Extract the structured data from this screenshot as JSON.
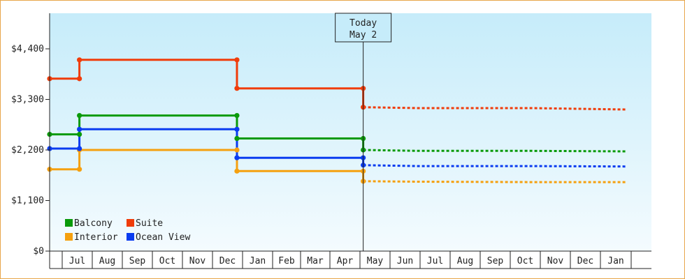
{
  "chart_data": {
    "type": "line",
    "y_tick_labels": [
      "$0",
      "$1,100",
      "$2,200",
      "$3,300",
      "$4,400"
    ],
    "y_tick_values": [
      0,
      1100,
      2200,
      3300,
      4400
    ],
    "ylim": [
      0,
      4400
    ],
    "x_tick_labels": [
      "Jul",
      "Aug",
      "Sep",
      "Oct",
      "Nov",
      "Dec",
      "Jan",
      "Feb",
      "Mar",
      "Apr",
      "May",
      "Jun",
      "Jul",
      "Aug",
      "Sep",
      "Oct",
      "Nov",
      "Dec",
      "Jan"
    ],
    "today_label": [
      "Today",
      "May 2"
    ],
    "grid": false,
    "legend_position": "bottom-left",
    "series": [
      {
        "name": "Balcony",
        "color": "#0a9a0a",
        "history": [
          [
            0,
            2540
          ],
          [
            1.05,
            2540
          ],
          [
            1.05,
            2950
          ],
          [
            6.6,
            2950
          ],
          [
            6.6,
            2450
          ],
          [
            11.05,
            2450
          ]
        ],
        "forecast": [
          [
            11.05,
            2200
          ],
          [
            13.0,
            2180
          ],
          [
            17.0,
            2180
          ],
          [
            20.3,
            2170
          ]
        ]
      },
      {
        "name": "Suite",
        "color": "#f03c0a",
        "history": [
          [
            0,
            3750
          ],
          [
            1.05,
            3750
          ],
          [
            1.05,
            4160
          ],
          [
            6.6,
            4160
          ],
          [
            6.6,
            3540
          ],
          [
            11.05,
            3540
          ]
        ],
        "forecast": [
          [
            11.05,
            3130
          ],
          [
            13.0,
            3110
          ],
          [
            17.0,
            3110
          ],
          [
            20.3,
            3080
          ]
        ]
      },
      {
        "name": "Interior",
        "color": "#f5a00f",
        "history": [
          [
            0,
            1780
          ],
          [
            1.05,
            1780
          ],
          [
            1.05,
            2200
          ],
          [
            6.6,
            2200
          ],
          [
            6.6,
            1740
          ],
          [
            11.05,
            1740
          ]
        ],
        "forecast": [
          [
            11.05,
            1520
          ],
          [
            13.0,
            1510
          ],
          [
            17.0,
            1500
          ],
          [
            20.3,
            1500
          ]
        ]
      },
      {
        "name": "Ocean View",
        "color": "#0a3cf0",
        "history": [
          [
            0,
            2230
          ],
          [
            1.05,
            2230
          ],
          [
            1.05,
            2650
          ],
          [
            6.6,
            2650
          ],
          [
            6.6,
            2030
          ],
          [
            11.05,
            2030
          ]
        ],
        "forecast": [
          [
            11.05,
            1870
          ],
          [
            13.0,
            1850
          ],
          [
            17.0,
            1850
          ],
          [
            20.3,
            1840
          ]
        ]
      }
    ],
    "markers": [
      {
        "series": 0,
        "points": [
          [
            0,
            2540
          ],
          [
            1.05,
            2540
          ],
          [
            1.05,
            2950
          ],
          [
            6.6,
            2950
          ],
          [
            6.6,
            2450
          ],
          [
            11.05,
            2450
          ],
          [
            11.05,
            2200
          ]
        ]
      },
      {
        "series": 1,
        "points": [
          [
            0,
            3750
          ],
          [
            1.05,
            3750
          ],
          [
            1.05,
            4160
          ],
          [
            6.6,
            4160
          ],
          [
            6.6,
            3540
          ],
          [
            11.05,
            3540
          ],
          [
            11.05,
            3130
          ]
        ]
      },
      {
        "series": 2,
        "points": [
          [
            0,
            1780
          ],
          [
            1.05,
            1780
          ],
          [
            1.05,
            2200
          ],
          [
            6.6,
            2200
          ],
          [
            6.6,
            1740
          ],
          [
            11.05,
            1740
          ],
          [
            11.05,
            1520
          ]
        ]
      },
      {
        "series": 3,
        "points": [
          [
            0,
            2230
          ],
          [
            1.05,
            2230
          ],
          [
            1.05,
            2650
          ],
          [
            6.6,
            2650
          ],
          [
            6.6,
            2030
          ],
          [
            11.05,
            2030
          ],
          [
            11.05,
            1870
          ]
        ]
      }
    ],
    "today_x": 11.05
  },
  "legend": [
    {
      "label": "Balcony",
      "color": "#0a9a0a"
    },
    {
      "label": "Suite",
      "color": "#f03c0a"
    },
    {
      "label": "Interior",
      "color": "#f5a00f"
    },
    {
      "label": "Ocean View",
      "color": "#0a3cf0"
    }
  ],
  "colors": {
    "plot_top": "#c6ecfa",
    "plot_bottom": "#f4fbfe",
    "frame_border": "#e8a64a",
    "axis": "#222222"
  }
}
